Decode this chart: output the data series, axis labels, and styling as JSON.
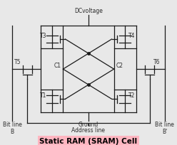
{
  "background_color": "#e8e8e8",
  "title": "Static RAM (SRAM) Cell",
  "title_fontsize": 7.5,
  "title_bg": "#ffb6c1",
  "dc_voltage_label": "DCvoltage",
  "ground_label": "Ground",
  "address_label": "Address line",
  "bit_line_B": "Bit line\nB",
  "bit_line_Bp": "Bit line\nB'",
  "line_color": "#1a1a1a",
  "label_color": "#2a2a2a",
  "font_size": 5.5
}
